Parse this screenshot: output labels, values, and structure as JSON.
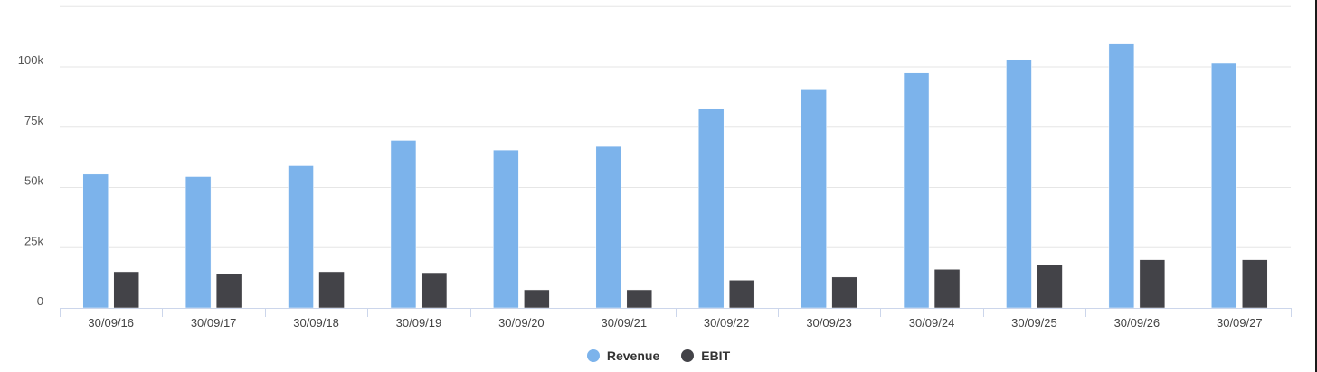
{
  "chart_data": {
    "type": "bar",
    "categories": [
      "30/09/16",
      "30/09/17",
      "30/09/18",
      "30/09/19",
      "30/09/20",
      "30/09/21",
      "30/09/22",
      "30/09/23",
      "30/09/24",
      "30/09/25",
      "30/09/26",
      "30/09/27"
    ],
    "series": [
      {
        "name": "Revenue",
        "color": "#7cb3eb",
        "values": [
          55500,
          54500,
          59000,
          69500,
          65500,
          67000,
          82500,
          90500,
          97500,
          103000,
          109500,
          101500
        ]
      },
      {
        "name": "EBIT",
        "color": "#434348",
        "values": [
          15000,
          14200,
          15000,
          14600,
          7500,
          7500,
          11500,
          12800,
          16000,
          17800,
          20000,
          20000
        ]
      }
    ],
    "y_ticks": [
      0,
      25000,
      50000,
      75000,
      100000
    ],
    "y_tick_labels": [
      "0",
      "25k",
      "50k",
      "75k",
      "100k"
    ],
    "ylim": [
      0,
      125000
    ],
    "grid": true,
    "legend_position": "bottom-center",
    "title": "",
    "xlabel": "",
    "ylabel": ""
  }
}
